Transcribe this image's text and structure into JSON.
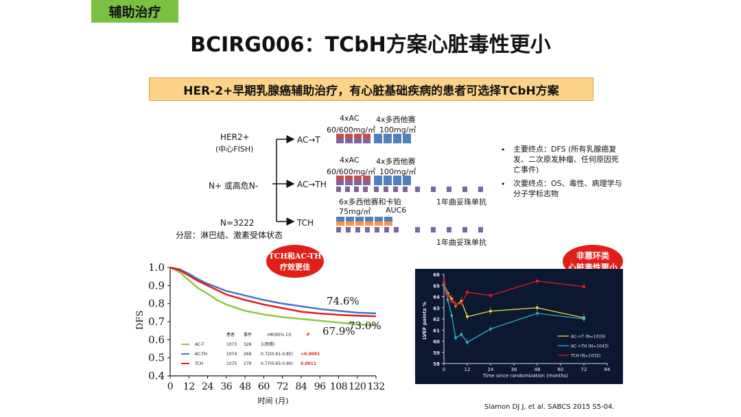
{
  "section_tag": "辅助治疗",
  "title": "BCIRG006：TCbH方案心脏毒性更小",
  "banner": "HER-2+早期乳腺癌辅助治疗，有心脏基础疾病的患者可选择TCbH方案",
  "design": {
    "population": [
      "HER2+",
      "(中心FISH)",
      "N+ 或高危N-",
      "N=3222",
      "分层：淋巴结、激素受体状态"
    ],
    "arms": [
      {
        "name": "AC→T",
        "regimen_top": "4xAC",
        "regimen_top2": "4x多西他赛",
        "dose_a": "60/600mg/㎡",
        "dose_b": "100mg/㎡"
      },
      {
        "name": "AC→TH",
        "regimen_top": "4xAC",
        "regimen_top2": "4x多西他赛",
        "dose_a": "60/600mg/㎡",
        "dose_b": "100mg/㎡",
        "bottom_note": "6x多西他赛和卡铂",
        "tail_note": "1年曲妥珠单抗"
      },
      {
        "name": "TCH",
        "dose_a": "75mg/㎡",
        "dose_b": "AUC6",
        "tail_note": "1年曲妥珠单抗"
      }
    ],
    "endpoints": [
      "主要终点：DFS (所有乳腺癌复发、二次原发肿瘤、任何原因死亡事件)",
      "次要终点：OS、毒性、病理学与分子学标志物"
    ]
  },
  "callouts": {
    "left": [
      "TCH和AC-TH",
      "疗效更佳"
    ],
    "right": [
      "非蒽环类",
      "心脏毒性更小"
    ]
  },
  "citation": "Slamon DJ J, et al. SABCS 2015 S5-04.",
  "colors": {
    "ac_t": "#8dc63f",
    "ac_th": "#4472c4",
    "tch": "#e41a1c",
    "tag_bg": "#7ac142",
    "banner_bg": "#fbd48a"
  },
  "chart_data": [
    {
      "type": "line",
      "ylabel": "DFS",
      "xlabel": "时间 (月)",
      "xlim": [
        0,
        132
      ],
      "ylim": [
        0.4,
        1.0
      ],
      "xticks": [
        0,
        12,
        24,
        36,
        48,
        60,
        72,
        84,
        96,
        108,
        120,
        132
      ],
      "yticks": [
        "0.4",
        "0.5",
        "0.6",
        "0.7",
        "0.8",
        "0.9",
        "1.0"
      ],
      "annotations": [
        "74.6%",
        "73.0%",
        "67.9%"
      ],
      "table": {
        "headers": [
          "患者",
          "事件",
          "HR(95% CI)",
          "P"
        ],
        "rows": [
          {
            "name": "AC-T",
            "patients": "1073",
            "events": "328",
            "hr": "1(参照)",
            "p": ""
          },
          {
            "name": "AC-TH",
            "patients": "1074",
            "events": "269",
            "hr": "0.72(0.61-0.85)",
            "p": "<0.0001"
          },
          {
            "name": "TCH",
            "patients": "1075",
            "events": "279",
            "hr": "0.77(0.65-0.90)",
            "p": "0.0011"
          }
        ]
      },
      "series": [
        {
          "name": "AC-T",
          "x": [
            0,
            6,
            12,
            18,
            24,
            30,
            36,
            48,
            60,
            72,
            84,
            96,
            108,
            120,
            132
          ],
          "y": [
            1.0,
            0.975,
            0.93,
            0.885,
            0.855,
            0.82,
            0.795,
            0.76,
            0.74,
            0.725,
            0.715,
            0.705,
            0.695,
            0.685,
            0.679
          ]
        },
        {
          "name": "AC-TH",
          "x": [
            0,
            6,
            12,
            18,
            24,
            30,
            36,
            48,
            60,
            72,
            84,
            96,
            108,
            120,
            132
          ],
          "y": [
            1.0,
            0.99,
            0.965,
            0.935,
            0.91,
            0.89,
            0.87,
            0.845,
            0.82,
            0.8,
            0.785,
            0.77,
            0.76,
            0.75,
            0.746
          ]
        },
        {
          "name": "TCH",
          "x": [
            0,
            6,
            12,
            18,
            24,
            30,
            36,
            48,
            60,
            72,
            84,
            96,
            108,
            120,
            132
          ],
          "y": [
            1.0,
            0.985,
            0.955,
            0.925,
            0.9,
            0.875,
            0.85,
            0.82,
            0.795,
            0.775,
            0.755,
            0.745,
            0.738,
            0.733,
            0.73
          ]
        }
      ]
    },
    {
      "type": "line",
      "ylabel": "LVEF points %",
      "xlabel": "Time since randomization (months)",
      "xlim": [
        0,
        84
      ],
      "ylim": [
        58,
        66
      ],
      "xticks": [
        0,
        12,
        24,
        36,
        48,
        60,
        72,
        84
      ],
      "yticks": [
        58,
        59,
        60,
        61,
        62,
        63,
        64,
        65,
        66
      ],
      "series": [
        {
          "name": "AC->T",
          "legend": "(N=1019)",
          "x": [
            0,
            2,
            4,
            6,
            9,
            12,
            24,
            48,
            72
          ],
          "y": [
            65.2,
            64.3,
            63.8,
            63.2,
            63.6,
            62.2,
            62.7,
            63.0,
            62.1
          ]
        },
        {
          "name": "AC->TH",
          "legend": "(N=1043)",
          "x": [
            0,
            2,
            4,
            6,
            9,
            12,
            24,
            48,
            72
          ],
          "y": [
            65.1,
            63.7,
            62.3,
            60.3,
            60.6,
            59.9,
            61.1,
            62.5,
            62.0
          ]
        },
        {
          "name": "TCH",
          "legend": "(N=1032)",
          "x": [
            0,
            2,
            4,
            6,
            9,
            12,
            24,
            48,
            72
          ],
          "y": [
            65.3,
            64.1,
            63.6,
            63.3,
            63.4,
            64.4,
            64.1,
            65.4,
            64.9
          ]
        }
      ]
    }
  ]
}
